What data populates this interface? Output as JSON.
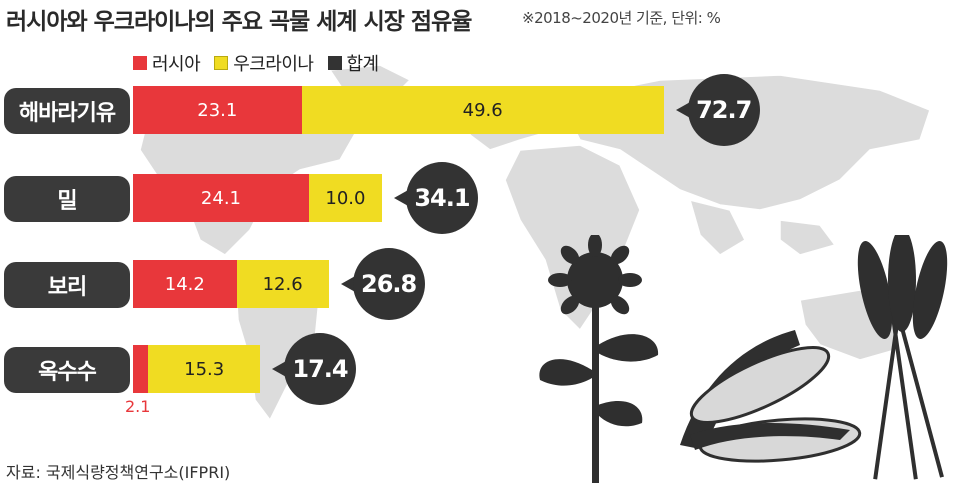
{
  "title": "러시아와 우크라이나의 주요 곡물 세계 시장 점유율",
  "note": "※2018~2020년 기준, 단위: %",
  "source": "자료: 국제식량정책연구소(IFPRI)",
  "colors": {
    "russia": "#e8373b",
    "ukraine": "#f0dc22",
    "total": "#333333"
  },
  "chart_data": {
    "type": "bar",
    "orientation": "horizontal",
    "stacked": true,
    "categories": [
      "해바라기유",
      "밀",
      "보리",
      "옥수수"
    ],
    "series": [
      {
        "name": "러시아",
        "values": [
          23.1,
          24.1,
          14.2,
          2.1
        ]
      },
      {
        "name": "우크라이나",
        "values": [
          49.6,
          10.0,
          12.6,
          15.3
        ]
      },
      {
        "name": "합계",
        "values": [
          72.7,
          34.1,
          26.8,
          17.4
        ]
      }
    ],
    "value_labels": {
      "russia": [
        "23.1",
        "24.1",
        "14.2",
        "2.1"
      ],
      "ukraine": [
        "49.6",
        "10.0",
        "12.6",
        "15.3"
      ],
      "total": [
        "72.7",
        "34.1",
        "26.8",
        "17.4"
      ]
    },
    "legend_position": "top-left"
  }
}
